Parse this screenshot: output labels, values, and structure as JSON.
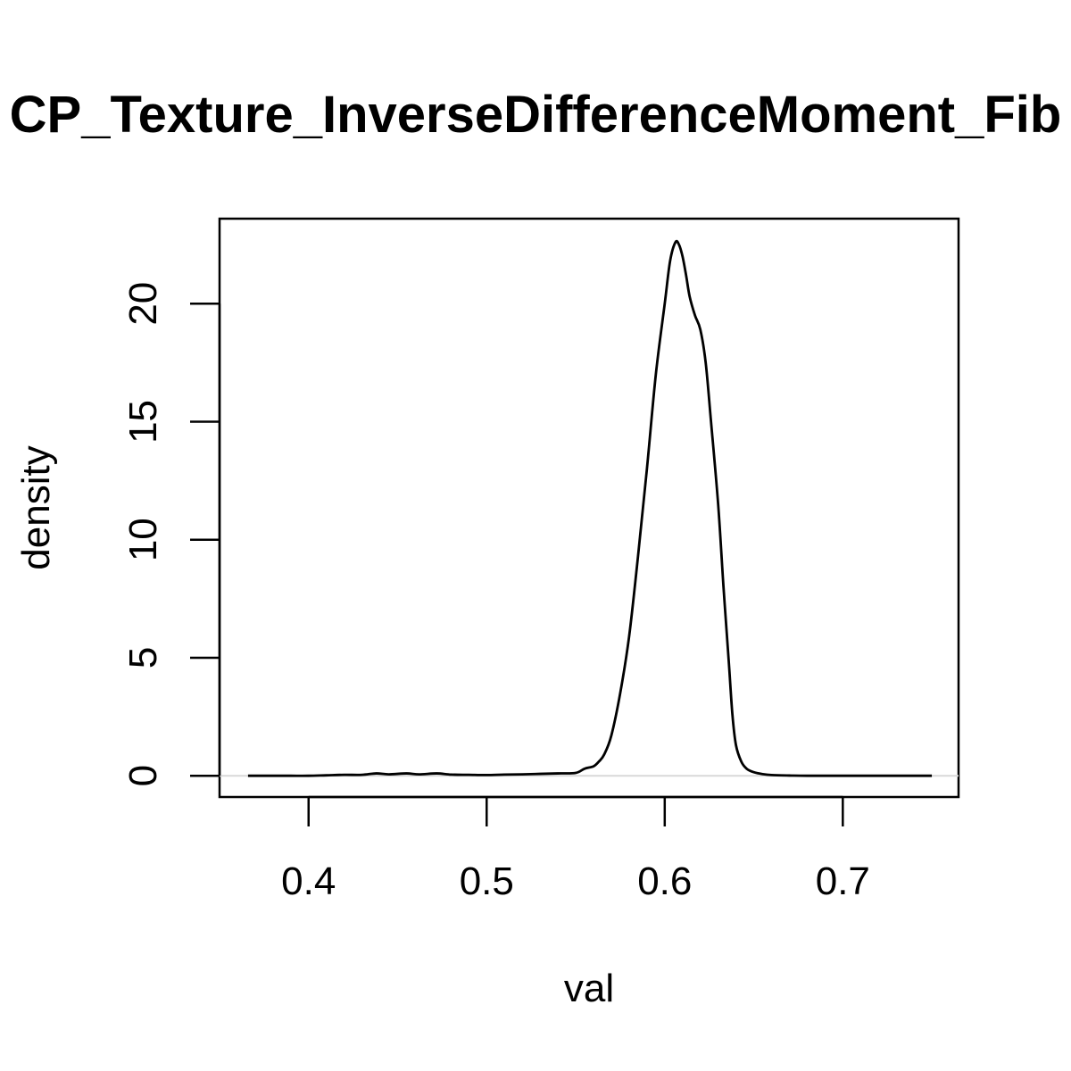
{
  "chart_data": {
    "type": "line",
    "title": "CP_Texture_InverseDifferenceMoment_Fib",
    "xlabel": "val",
    "ylabel": "density",
    "xlim": [
      0.35,
      0.765
    ],
    "ylim": [
      -0.9,
      23.6
    ],
    "x_ticks": [
      0.4,
      0.5,
      0.6,
      0.7
    ],
    "x_tick_labels": [
      "0.4",
      "0.5",
      "0.6",
      "0.7"
    ],
    "y_ticks": [
      0,
      5,
      10,
      15,
      20
    ],
    "y_tick_labels": [
      "0",
      "5",
      "10",
      "15",
      "20"
    ],
    "grid": false,
    "baseline": {
      "y": 0,
      "color": "#d9d9d9"
    },
    "series": [
      {
        "color": "#000000",
        "x": [
          0.366,
          0.38,
          0.39,
          0.4,
          0.41,
          0.42,
          0.43,
          0.438,
          0.445,
          0.455,
          0.462,
          0.472,
          0.48,
          0.49,
          0.5,
          0.51,
          0.52,
          0.53,
          0.54,
          0.55,
          0.555,
          0.56,
          0.563,
          0.566,
          0.57,
          0.575,
          0.58,
          0.585,
          0.59,
          0.595,
          0.6,
          0.603,
          0.606,
          0.608,
          0.61,
          0.612,
          0.614,
          0.617,
          0.62,
          0.623,
          0.626,
          0.63,
          0.633,
          0.636,
          0.638,
          0.64,
          0.643,
          0.646,
          0.65,
          0.655,
          0.66,
          0.67,
          0.68,
          0.7,
          0.72,
          0.74,
          0.75
        ],
        "y": [
          0.0,
          0.0,
          0.0,
          0.0,
          0.02,
          0.04,
          0.04,
          0.1,
          0.06,
          0.1,
          0.06,
          0.1,
          0.05,
          0.04,
          0.03,
          0.05,
          0.06,
          0.08,
          0.1,
          0.12,
          0.3,
          0.4,
          0.6,
          0.9,
          1.7,
          3.5,
          5.9,
          9.3,
          13.0,
          17.0,
          20.0,
          21.8,
          22.6,
          22.5,
          22.0,
          21.2,
          20.3,
          19.5,
          18.9,
          17.5,
          15.0,
          11.5,
          8.0,
          4.8,
          2.6,
          1.3,
          0.6,
          0.3,
          0.15,
          0.07,
          0.03,
          0.01,
          0.0,
          0.0,
          0.0,
          0.0,
          0.0
        ]
      }
    ]
  }
}
